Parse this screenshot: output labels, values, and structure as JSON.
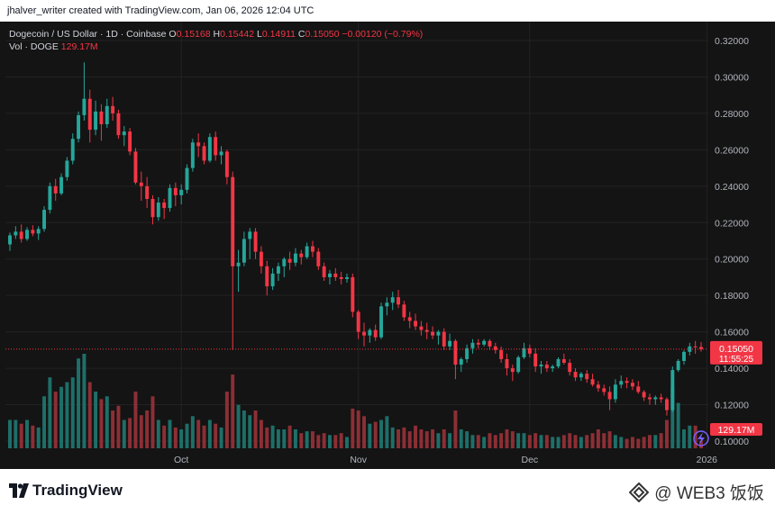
{
  "header": {
    "credit": "jhalver_writer created with TradingView.com, Jan 06, 2026 12:04 UTC"
  },
  "legend": {
    "symbol": "Dogecoin / US Dollar · 1D · Coinbase",
    "o_label": "O",
    "o_value": "0.15168",
    "h_label": "H",
    "h_value": "0.15442",
    "l_label": "L",
    "l_value": "0.14911",
    "c_label": "C",
    "c_value": "0.15050",
    "change": "−0.00120 (−0.79%)",
    "vol_label": "Vol · DOGE",
    "vol_value": "129.17M"
  },
  "footer": {
    "logo_text": "TradingView",
    "watermark": "@ WEB3 饭饭"
  },
  "colors": {
    "up": "#26a69a",
    "down": "#f23645",
    "up_vol": "#1e6f68",
    "down_vol": "#8c2f35",
    "background": "#141414",
    "axis_text": "#b2b5be"
  },
  "chart_data": {
    "type": "candlestick",
    "ylim": [
      0.1,
      0.32
    ],
    "yticks": [
      "0.32000",
      "0.30000",
      "0.28000",
      "0.26000",
      "0.24000",
      "0.22000",
      "0.20000",
      "0.18000",
      "0.16000",
      "0.14000",
      "0.12000",
      "0.10000"
    ],
    "ytick_values": [
      0.32,
      0.3,
      0.28,
      0.26,
      0.24,
      0.22,
      0.2,
      0.18,
      0.16,
      0.14,
      0.12,
      0.1
    ],
    "xticks": [
      {
        "label": "Oct",
        "index": 30
      },
      {
        "label": "Nov",
        "index": 61
      },
      {
        "label": "Dec",
        "index": 91
      },
      {
        "label": "2026",
        "index": 122
      }
    ],
    "last_price": {
      "price": 0.1505,
      "label": "0.15050",
      "countdown": "11:55:25"
    },
    "last_volume": {
      "label": "129.17M"
    },
    "volume_max": 10,
    "candles": [
      [
        0.208,
        0.2145,
        0.2045,
        0.213,
        3.0
      ],
      [
        0.213,
        0.218,
        0.211,
        0.215,
        3.0
      ],
      [
        0.215,
        0.219,
        0.209,
        0.211,
        2.6
      ],
      [
        0.211,
        0.2175,
        0.21,
        0.216,
        3.0
      ],
      [
        0.216,
        0.2185,
        0.2125,
        0.214,
        2.4
      ],
      [
        0.214,
        0.218,
        0.2105,
        0.2165,
        2.2
      ],
      [
        0.2165,
        0.229,
        0.215,
        0.227,
        5.5
      ],
      [
        0.227,
        0.242,
        0.225,
        0.24,
        7.5
      ],
      [
        0.24,
        0.244,
        0.232,
        0.236,
        6.0
      ],
      [
        0.236,
        0.247,
        0.235,
        0.245,
        6.5
      ],
      [
        0.245,
        0.256,
        0.243,
        0.254,
        7.0
      ],
      [
        0.254,
        0.269,
        0.252,
        0.266,
        7.5
      ],
      [
        0.266,
        0.281,
        0.264,
        0.279,
        9.5
      ],
      [
        0.279,
        0.308,
        0.276,
        0.288,
        10.0
      ],
      [
        0.288,
        0.293,
        0.264,
        0.271,
        7.0
      ],
      [
        0.271,
        0.287,
        0.268,
        0.281,
        6.0
      ],
      [
        0.281,
        0.285,
        0.265,
        0.274,
        5.2
      ],
      [
        0.274,
        0.288,
        0.272,
        0.284,
        5.5
      ],
      [
        0.284,
        0.289,
        0.276,
        0.28,
        4.0
      ],
      [
        0.28,
        0.282,
        0.266,
        0.268,
        4.5
      ],
      [
        0.268,
        0.273,
        0.262,
        0.27,
        3.0
      ],
      [
        0.27,
        0.272,
        0.257,
        0.259,
        3.2
      ],
      [
        0.259,
        0.261,
        0.241,
        0.242,
        6.0
      ],
      [
        0.242,
        0.248,
        0.232,
        0.24,
        3.5
      ],
      [
        0.24,
        0.245,
        0.228,
        0.233,
        4.0
      ],
      [
        0.233,
        0.235,
        0.219,
        0.223,
        5.5
      ],
      [
        0.223,
        0.234,
        0.221,
        0.231,
        3.0
      ],
      [
        0.231,
        0.233,
        0.222,
        0.228,
        2.4
      ],
      [
        0.228,
        0.241,
        0.226,
        0.239,
        3.0
      ],
      [
        0.239,
        0.242,
        0.229,
        0.235,
        2.2
      ],
      [
        0.235,
        0.241,
        0.23,
        0.238,
        2.0
      ],
      [
        0.238,
        0.252,
        0.236,
        0.25,
        2.6
      ],
      [
        0.25,
        0.266,
        0.248,
        0.264,
        3.4
      ],
      [
        0.264,
        0.269,
        0.256,
        0.262,
        3.0
      ],
      [
        0.262,
        0.264,
        0.252,
        0.254,
        2.4
      ],
      [
        0.254,
        0.269,
        0.253,
        0.267,
        3.0
      ],
      [
        0.267,
        0.27,
        0.254,
        0.257,
        2.6
      ],
      [
        0.257,
        0.262,
        0.252,
        0.259,
        2.2
      ],
      [
        0.259,
        0.26,
        0.241,
        0.245,
        6.0
      ],
      [
        0.245,
        0.248,
        0.15,
        0.196,
        7.8
      ],
      [
        0.196,
        0.205,
        0.182,
        0.198,
        4.6
      ],
      [
        0.198,
        0.215,
        0.196,
        0.211,
        4.0
      ],
      [
        0.211,
        0.217,
        0.2,
        0.215,
        3.5
      ],
      [
        0.215,
        0.217,
        0.2,
        0.204,
        4.0
      ],
      [
        0.204,
        0.207,
        0.192,
        0.196,
        3.0
      ],
      [
        0.196,
        0.199,
        0.18,
        0.185,
        2.2
      ],
      [
        0.185,
        0.195,
        0.183,
        0.192,
        2.4
      ],
      [
        0.192,
        0.198,
        0.188,
        0.196,
        2.0
      ],
      [
        0.196,
        0.201,
        0.19,
        0.2,
        2.0
      ],
      [
        0.2,
        0.204,
        0.194,
        0.198,
        2.4
      ],
      [
        0.198,
        0.206,
        0.196,
        0.203,
        2.0
      ],
      [
        0.203,
        0.205,
        0.197,
        0.201,
        1.6
      ],
      [
        0.201,
        0.209,
        0.2,
        0.207,
        1.8
      ],
      [
        0.207,
        0.21,
        0.201,
        0.204,
        1.8
      ],
      [
        0.204,
        0.206,
        0.194,
        0.196,
        1.4
      ],
      [
        0.196,
        0.198,
        0.188,
        0.19,
        1.6
      ],
      [
        0.19,
        0.194,
        0.186,
        0.192,
        1.4
      ],
      [
        0.192,
        0.195,
        0.188,
        0.19,
        1.4
      ],
      [
        0.19,
        0.193,
        0.186,
        0.189,
        1.6
      ],
      [
        0.189,
        0.192,
        0.187,
        0.19,
        1.2
      ],
      [
        0.19,
        0.192,
        0.168,
        0.171,
        4.2
      ],
      [
        0.171,
        0.172,
        0.156,
        0.16,
        4.0
      ],
      [
        0.16,
        0.165,
        0.152,
        0.158,
        3.4
      ],
      [
        0.158,
        0.162,
        0.154,
        0.161,
        2.6
      ],
      [
        0.161,
        0.164,
        0.155,
        0.157,
        2.8
      ],
      [
        0.157,
        0.176,
        0.156,
        0.174,
        3.0
      ],
      [
        0.174,
        0.179,
        0.169,
        0.176,
        3.4
      ],
      [
        0.176,
        0.182,
        0.172,
        0.179,
        2.2
      ],
      [
        0.179,
        0.183,
        0.173,
        0.175,
        2.0
      ],
      [
        0.175,
        0.177,
        0.166,
        0.168,
        2.2
      ],
      [
        0.168,
        0.171,
        0.162,
        0.166,
        1.8
      ],
      [
        0.166,
        0.17,
        0.161,
        0.163,
        2.4
      ],
      [
        0.163,
        0.166,
        0.158,
        0.161,
        2.0
      ],
      [
        0.161,
        0.165,
        0.156,
        0.16,
        1.8
      ],
      [
        0.16,
        0.163,
        0.156,
        0.158,
        2.0
      ],
      [
        0.158,
        0.161,
        0.153,
        0.16,
        1.6
      ],
      [
        0.16,
        0.162,
        0.15,
        0.152,
        2.0
      ],
      [
        0.152,
        0.159,
        0.15,
        0.155,
        1.6
      ],
      [
        0.155,
        0.156,
        0.134,
        0.142,
        4.0
      ],
      [
        0.142,
        0.146,
        0.138,
        0.145,
        2.0
      ],
      [
        0.145,
        0.153,
        0.143,
        0.151,
        1.8
      ],
      [
        0.151,
        0.156,
        0.148,
        0.154,
        1.4
      ],
      [
        0.154,
        0.156,
        0.151,
        0.153,
        1.4
      ],
      [
        0.153,
        0.156,
        0.152,
        0.155,
        1.2
      ],
      [
        0.155,
        0.156,
        0.15,
        0.152,
        1.6
      ],
      [
        0.152,
        0.154,
        0.148,
        0.15,
        1.4
      ],
      [
        0.15,
        0.152,
        0.143,
        0.145,
        1.6
      ],
      [
        0.145,
        0.148,
        0.136,
        0.14,
        2.0
      ],
      [
        0.14,
        0.142,
        0.133,
        0.138,
        1.8
      ],
      [
        0.138,
        0.147,
        0.137,
        0.146,
        1.6
      ],
      [
        0.146,
        0.154,
        0.145,
        0.151,
        1.6
      ],
      [
        0.151,
        0.153,
        0.146,
        0.148,
        1.4
      ],
      [
        0.148,
        0.151,
        0.138,
        0.141,
        1.6
      ],
      [
        0.141,
        0.144,
        0.137,
        0.142,
        1.4
      ],
      [
        0.142,
        0.144,
        0.138,
        0.14,
        1.4
      ],
      [
        0.14,
        0.142,
        0.138,
        0.141,
        1.2
      ],
      [
        0.141,
        0.146,
        0.14,
        0.145,
        1.2
      ],
      [
        0.145,
        0.148,
        0.142,
        0.143,
        1.4
      ],
      [
        0.143,
        0.145,
        0.136,
        0.138,
        1.6
      ],
      [
        0.138,
        0.14,
        0.133,
        0.135,
        1.4
      ],
      [
        0.135,
        0.138,
        0.133,
        0.137,
        1.2
      ],
      [
        0.137,
        0.139,
        0.132,
        0.134,
        1.4
      ],
      [
        0.134,
        0.137,
        0.13,
        0.131,
        1.6
      ],
      [
        0.131,
        0.133,
        0.127,
        0.129,
        2.0
      ],
      [
        0.129,
        0.131,
        0.125,
        0.127,
        1.6
      ],
      [
        0.127,
        0.13,
        0.117,
        0.123,
        1.8
      ],
      [
        0.123,
        0.134,
        0.121,
        0.131,
        1.4
      ],
      [
        0.131,
        0.136,
        0.129,
        0.133,
        1.2
      ],
      [
        0.133,
        0.135,
        0.129,
        0.132,
        1.0
      ],
      [
        0.132,
        0.134,
        0.128,
        0.13,
        1.2
      ],
      [
        0.13,
        0.133,
        0.126,
        0.127,
        1.0
      ],
      [
        0.127,
        0.128,
        0.122,
        0.124,
        1.2
      ],
      [
        0.124,
        0.126,
        0.12,
        0.123,
        1.4
      ],
      [
        0.123,
        0.125,
        0.12,
        0.124,
        1.4
      ],
      [
        0.124,
        0.126,
        0.121,
        0.123,
        1.6
      ],
      [
        0.123,
        0.124,
        0.114,
        0.117,
        3.0
      ],
      [
        0.117,
        0.141,
        0.116,
        0.139,
        6.5
      ],
      [
        0.139,
        0.145,
        0.138,
        0.144,
        4.8
      ],
      [
        0.144,
        0.15,
        0.142,
        0.149,
        2.0
      ],
      [
        0.149,
        0.154,
        0.147,
        0.152,
        2.4
      ],
      [
        0.152,
        0.155,
        0.148,
        0.1517,
        2.4
      ],
      [
        0.1517,
        0.1544,
        0.1491,
        0.1505,
        0.8
      ]
    ]
  }
}
